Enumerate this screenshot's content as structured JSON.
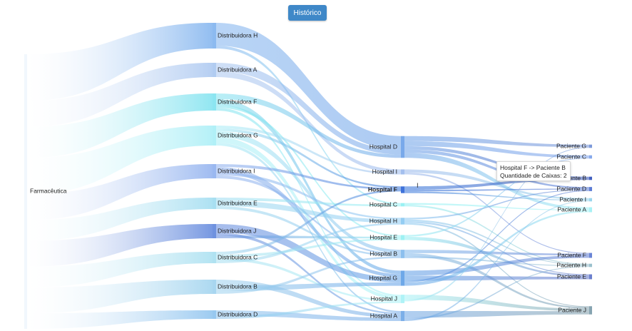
{
  "button": {
    "label": "Histórico"
  },
  "sankey": {
    "source": "Farmacêutica",
    "distributors": [
      "Distribuidora H",
      "Distribuidora A",
      "Distribuidora F",
      "Distribuidora G",
      "Distribuidora I",
      "Distribuidora E",
      "Distribuidora J",
      "Distribuidora C",
      "Distribuidora B",
      "Distribuidora D"
    ],
    "hospitals": [
      "Hospital D",
      "Hospital I",
      "Hospital F",
      "Hospital C",
      "Hospital H",
      "Hospital E",
      "Hospital B",
      "Hospital G",
      "Hospital J",
      "Hospital A"
    ],
    "patients": [
      "Paciente G",
      "Paciente C",
      "Paciente B",
      "Paciente D",
      "Paciente I",
      "Paciente A",
      "Paciente F",
      "Paciente H",
      "Paciente E",
      "Paciente J"
    ],
    "highlighted_node": "Hospital F",
    "links_dist_hosp": [
      [
        "Distribuidora H",
        "Hospital D",
        8
      ],
      [
        "Distribuidora H",
        "Hospital C",
        1
      ],
      [
        "Distribuidora A",
        "Hospital D",
        3
      ],
      [
        "Distribuidora A",
        "Hospital I",
        2
      ],
      [
        "Distribuidora F",
        "Hospital D",
        2
      ],
      [
        "Distribuidora F",
        "Hospital G",
        2
      ],
      [
        "Distribuidora F",
        "Hospital E",
        1
      ],
      [
        "Distribuidora F",
        "Hospital J",
        1
      ],
      [
        "Distribuidora G",
        "Hospital I",
        1
      ],
      [
        "Distribuidora G",
        "Hospital F",
        1
      ],
      [
        "Distribuidora G",
        "Hospital B",
        2
      ],
      [
        "Distribuidora G",
        "Hospital J",
        2
      ],
      [
        "Distribuidora G",
        "Hospital A",
        1
      ],
      [
        "Distribuidora I",
        "Hospital F",
        1
      ],
      [
        "Distribuidora I",
        "Hospital G",
        2
      ],
      [
        "Distribuidora I",
        "Hospital H",
        1
      ],
      [
        "Distribuidora I",
        "Hospital B",
        1
      ],
      [
        "Distribuidora E",
        "Hospital C",
        1
      ],
      [
        "Distribuidora E",
        "Hospital H",
        2
      ],
      [
        "Distribuidora E",
        "Hospital B",
        1
      ],
      [
        "Distribuidora J",
        "Hospital G",
        3
      ],
      [
        "Distribuidora J",
        "Hospital A",
        1
      ],
      [
        "Distribuidora J",
        "Hospital E",
        1
      ],
      [
        "Distribuidora C",
        "Hospital F",
        1
      ],
      [
        "Distribuidora C",
        "Hospital E",
        1
      ],
      [
        "Distribuidora C",
        "Hospital J",
        1
      ],
      [
        "Distribuidora C",
        "Hospital H",
        1
      ],
      [
        "Distribuidora B",
        "Hospital A",
        2
      ],
      [
        "Distribuidora B",
        "Hospital G",
        2
      ],
      [
        "Distribuidora B",
        "Hospital B",
        1
      ],
      [
        "Distribuidora D",
        "Hospital A",
        2
      ],
      [
        "Distribuidora D",
        "Hospital J",
        1
      ]
    ],
    "links_hosp_pat": [
      [
        "Hospital D",
        "Paciente G",
        3
      ],
      [
        "Hospital D",
        "Paciente C",
        3
      ],
      [
        "Hospital D",
        "Paciente B",
        2
      ],
      [
        "Hospital D",
        "Paciente D",
        2
      ],
      [
        "Hospital D",
        "Paciente A",
        3
      ],
      [
        "Hospital I",
        "Paciente I",
        2
      ],
      [
        "Hospital I",
        "Paciente F",
        1
      ],
      [
        "Hospital F",
        "Paciente B",
        2
      ],
      [
        "Hospital F",
        "Paciente D",
        1
      ],
      [
        "Hospital F",
        "Paciente I",
        1
      ],
      [
        "Hospital C",
        "Paciente A",
        1
      ],
      [
        "Hospital C",
        "Paciente H",
        1
      ],
      [
        "Hospital H",
        "Paciente D",
        1
      ],
      [
        "Hospital H",
        "Paciente H",
        1
      ],
      [
        "Hospital H",
        "Paciente E",
        1
      ],
      [
        "Hospital H",
        "Paciente J",
        1
      ],
      [
        "Hospital E",
        "Paciente C",
        1
      ],
      [
        "Hospital E",
        "Paciente E",
        2
      ],
      [
        "Hospital B",
        "Paciente F",
        2
      ],
      [
        "Hospital B",
        "Paciente J",
        2
      ],
      [
        "Hospital B",
        "Paciente H",
        1
      ],
      [
        "Hospital G",
        "Paciente F",
        3
      ],
      [
        "Hospital G",
        "Paciente E",
        3
      ],
      [
        "Hospital G",
        "Paciente D",
        1
      ],
      [
        "Hospital G",
        "Paciente A",
        2
      ],
      [
        "Hospital J",
        "Paciente J",
        3
      ],
      [
        "Hospital J",
        "Paciente G",
        1
      ],
      [
        "Hospital A",
        "Paciente J",
        4
      ],
      [
        "Hospital A",
        "Paciente H",
        1
      ],
      [
        "Hospital A",
        "Paciente I",
        1
      ]
    ]
  },
  "tooltip": {
    "line1": "Hospital F -> Paciente B",
    "line2": "Quantidade de Caixas: 2"
  },
  "cursor_glyph": "I"
}
